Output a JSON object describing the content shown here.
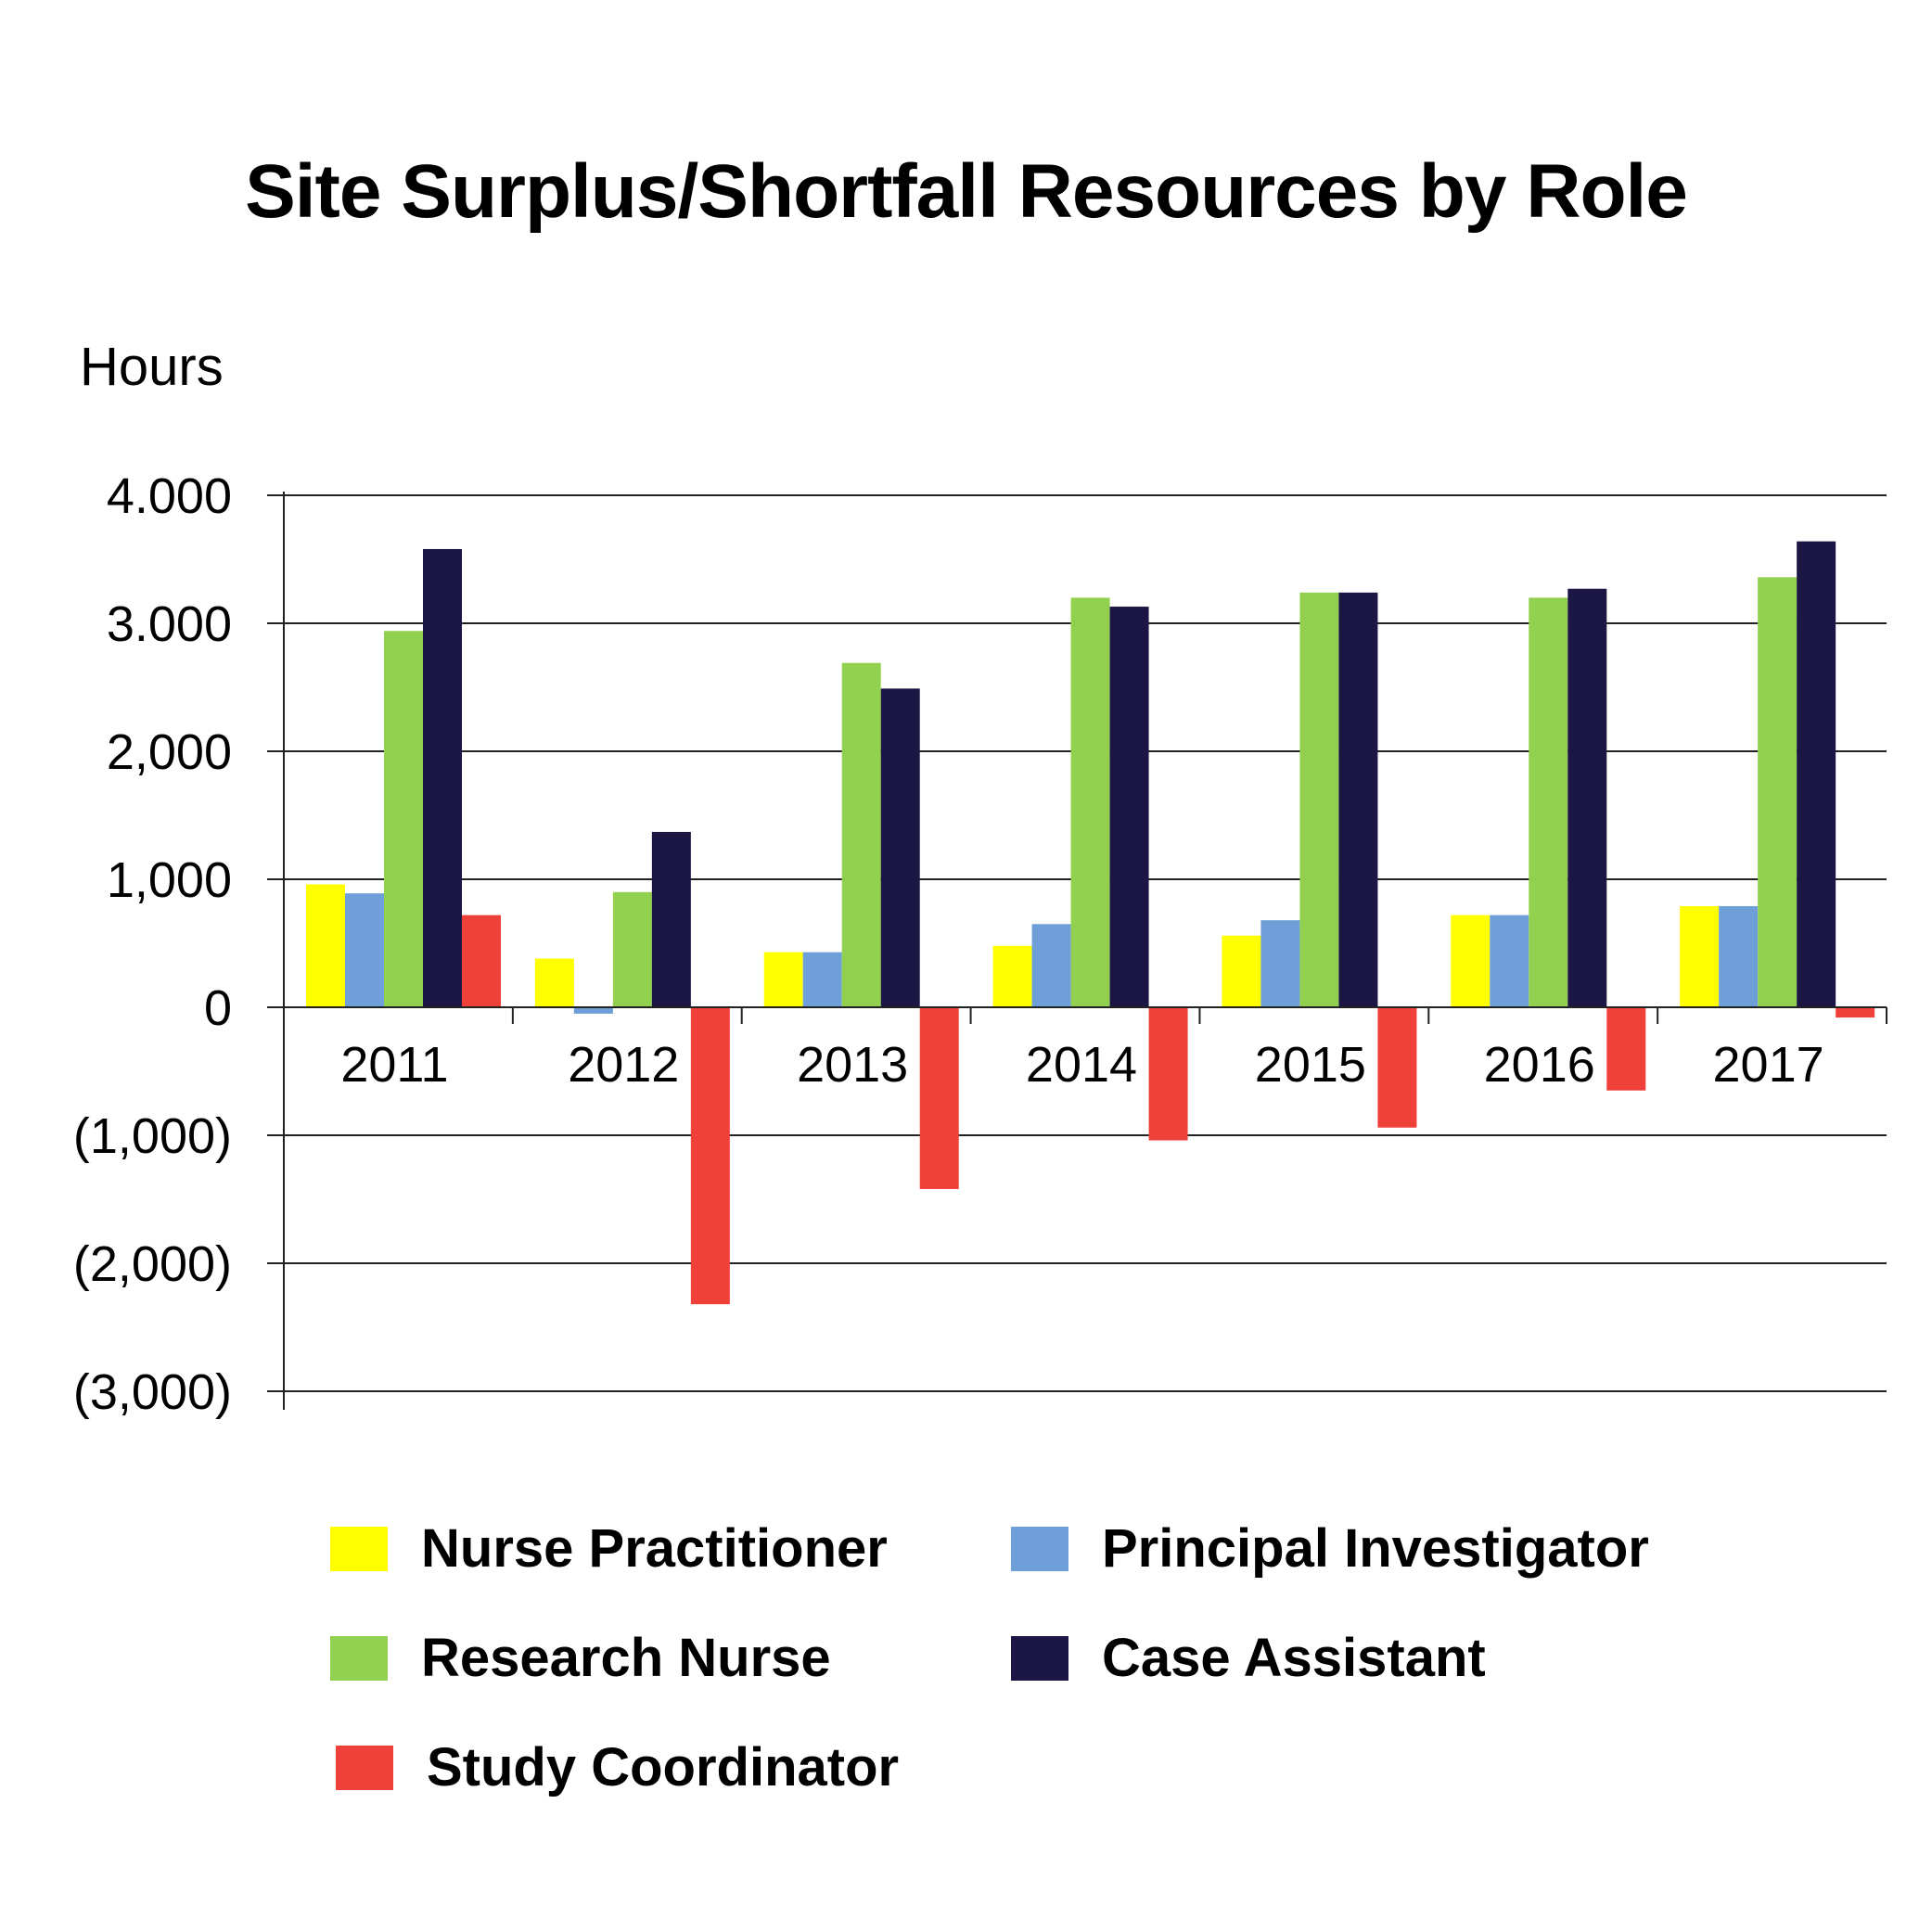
{
  "chart_data": {
    "type": "bar",
    "title": "Site Surplus/Shortfall Resources by Role",
    "ylabel": "Hours",
    "xlabel": "",
    "categories": [
      "2011",
      "2012",
      "2013",
      "2014",
      "2015",
      "2016",
      "2017"
    ],
    "ylim": [
      -3000,
      4000
    ],
    "yticks": [
      4000,
      3000,
      2000,
      1000,
      0,
      -1000,
      -2000,
      -3000
    ],
    "ytick_labels": [
      "4.000",
      "3.000",
      "2,000",
      "1,000",
      "0",
      "(1,000)",
      "(2,000)",
      "(3,000)"
    ],
    "grid": true,
    "legend_position": "bottom",
    "series": [
      {
        "name": "Nurse Practitioner",
        "color": "#ffff00",
        "values": [
          960,
          380,
          430,
          480,
          560,
          720,
          790
        ]
      },
      {
        "name": "Principal Investigator",
        "color": "#6f9fd8",
        "values": [
          890,
          -50,
          430,
          650,
          680,
          720,
          790
        ]
      },
      {
        "name": "Research Nurse",
        "color": "#92d050",
        "values": [
          2940,
          900,
          2690,
          3200,
          3240,
          3200,
          3360
        ]
      },
      {
        "name": "Case Assistant",
        "color": "#1c1645",
        "values": [
          3580,
          1370,
          2490,
          3130,
          3240,
          3270,
          3640
        ]
      },
      {
        "name": "Study Coordinator",
        "color": "#f0403a",
        "values": [
          720,
          -2320,
          -1420,
          -1040,
          -940,
          -650,
          -80
        ]
      }
    ]
  }
}
